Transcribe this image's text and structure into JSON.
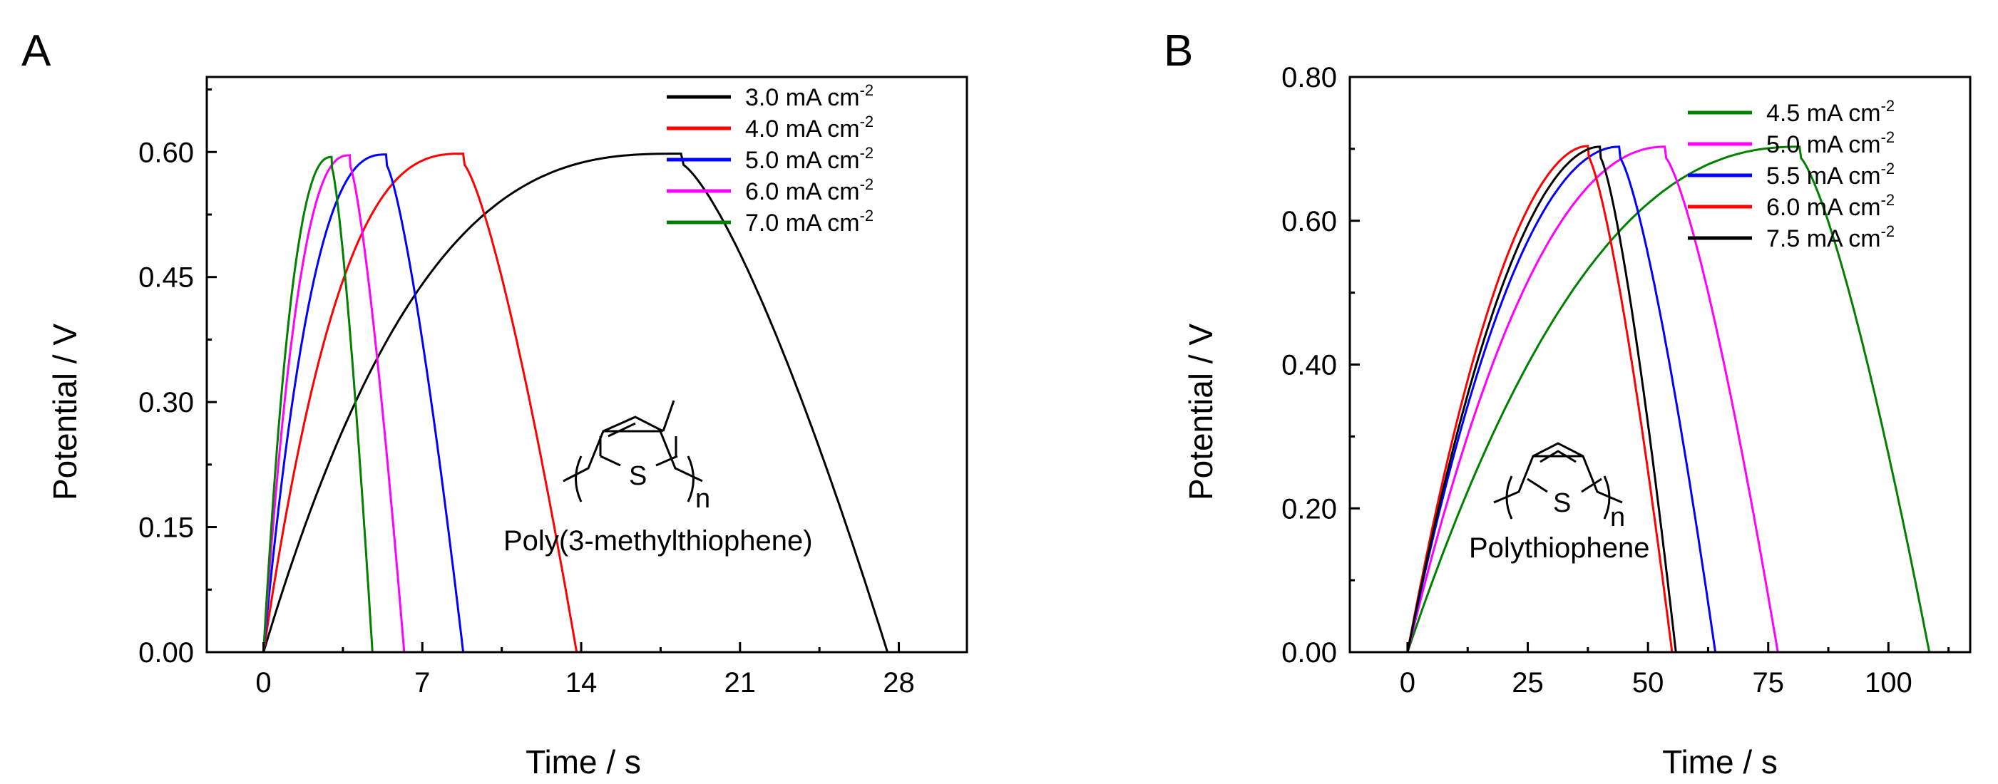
{
  "chart_data": [
    {
      "type": "line",
      "panel_label": "A",
      "xlabel": "Time / s",
      "ylabel": "Potential / V",
      "xlim": [
        -2.5,
        31
      ],
      "ylim": [
        0,
        0.69
      ],
      "xticks": [
        0,
        7,
        14,
        21,
        28
      ],
      "xtick_labels": [
        "0",
        "7",
        "14",
        "21",
        "28"
      ],
      "yticks": [
        0,
        0.15,
        0.3,
        0.45,
        0.6
      ],
      "ytick_labels": [
        "0.00",
        "0.15",
        "0.30",
        "0.45",
        "0.60"
      ],
      "legend_position": "top-right",
      "unit_base": "mA cm",
      "unit_exp": "-2",
      "structure_label": "Poly(3-methylthiophene)",
      "structure_atoms": {
        "s": "S",
        "n": "n"
      },
      "series": [
        {
          "name": "3.0",
          "color": "#000000",
          "charge_time": 18.4,
          "discharge_end": 27.5,
          "peak": 0.598,
          "shape": 0.9
        },
        {
          "name": "4.0",
          "color": "#ff0000",
          "charge_time": 8.8,
          "discharge_end": 13.8,
          "peak": 0.598,
          "shape": 0.85
        },
        {
          "name": "5.0",
          "color": "#0000ff",
          "charge_time": 5.4,
          "discharge_end": 8.8,
          "peak": 0.597,
          "shape": 0.8
        },
        {
          "name": "6.0",
          "color": "#ff00ff",
          "charge_time": 3.8,
          "discharge_end": 6.2,
          "peak": 0.596,
          "shape": 0.75
        },
        {
          "name": "7.0",
          "color": "#008000",
          "charge_time": 3.0,
          "discharge_end": 4.8,
          "peak": 0.594,
          "shape": 0.7
        }
      ]
    },
    {
      "type": "line",
      "panel_label": "B",
      "xlabel": "Time / s",
      "ylabel": "Potential / V",
      "xlim": [
        -12,
        117
      ],
      "ylim": [
        0,
        0.8
      ],
      "xticks": [
        0,
        25,
        50,
        75,
        100
      ],
      "xtick_labels": [
        "0",
        "25",
        "50",
        "75",
        "100"
      ],
      "yticks": [
        0,
        0.2,
        0.4,
        0.6,
        0.8
      ],
      "ytick_labels": [
        "0.00",
        "0.20",
        "0.40",
        "0.60",
        "0.80"
      ],
      "legend_position": "top-right",
      "unit_base": "mA cm",
      "unit_exp": "-2",
      "structure_label": "Polythiophene",
      "structure_atoms": {
        "s": "S",
        "n": "n"
      },
      "series": [
        {
          "name": "4.5",
          "color": "#008000",
          "charge_time": 81.5,
          "discharge_end": 108.5,
          "peak": 0.703,
          "shape": 0.65
        },
        {
          "name": "5.0",
          "color": "#ff00ff",
          "charge_time": 53.5,
          "discharge_end": 77.0,
          "peak": 0.703,
          "shape": 0.55
        },
        {
          "name": "5.5",
          "color": "#0000ff",
          "charge_time": 44.0,
          "discharge_end": 64.0,
          "peak": 0.703,
          "shape": 0.5
        },
        {
          "name": "6.0",
          "color": "#ff0000",
          "charge_time": 37.5,
          "discharge_end": 55.0,
          "peak": 0.704,
          "shape": 0.45
        },
        {
          "name": "7.5",
          "color": "#000000",
          "charge_time": 40.0,
          "discharge_end": 55.8,
          "peak": 0.703,
          "shape": 0.45
        }
      ]
    }
  ]
}
